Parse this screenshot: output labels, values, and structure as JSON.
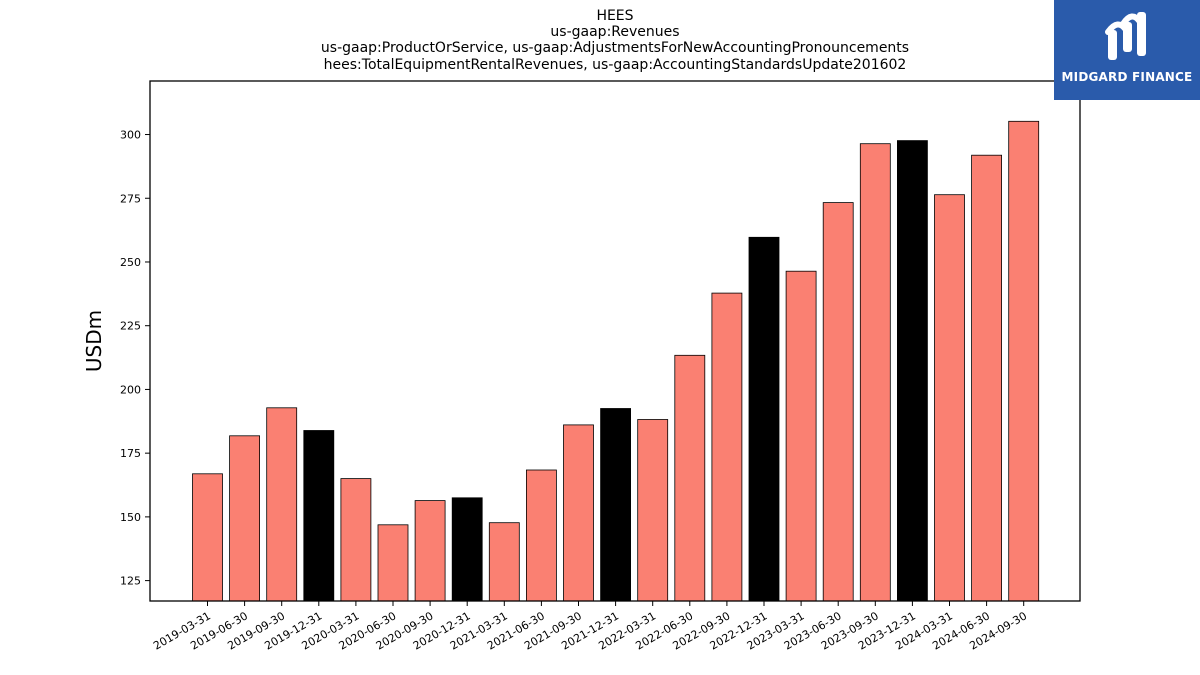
{
  "logo": {
    "text": "MIDGARD FINANCE",
    "icon": "midgard-logo-icon",
    "color": "#2a5bab"
  },
  "chart_data": {
    "type": "bar",
    "title_lines": [
      "HEES",
      "us-gaap:Revenues",
      "us-gaap:ProductOrService, us-gaap:AdjustmentsForNewAccountingPronouncements",
      "hees:TotalEquipmentRentalRevenues, us-gaap:AccountingStandardsUpdate201602"
    ],
    "xlabel": "",
    "ylabel": "USDm",
    "ylim": [
      117,
      321
    ],
    "yticks": [
      125,
      150,
      175,
      200,
      225,
      250,
      275,
      300
    ],
    "grid": false,
    "colors": {
      "quarter": "#fa8072",
      "year_end": "#000000",
      "edge": "#000000"
    },
    "categories": [
      "2019-03-31",
      "2019-06-30",
      "2019-09-30",
      "2019-12-31",
      "2020-03-31",
      "2020-06-30",
      "2020-09-30",
      "2020-12-31",
      "2021-03-31",
      "2021-06-30",
      "2021-09-30",
      "2021-12-31",
      "2022-03-31",
      "2022-06-30",
      "2022-09-30",
      "2022-12-31",
      "2023-03-31",
      "2023-06-30",
      "2023-09-30",
      "2023-12-31",
      "2024-03-31",
      "2024-06-30",
      "2024-09-30"
    ],
    "values": [
      166.9,
      181.8,
      192.8,
      183.9,
      165.0,
      146.9,
      156.4,
      157.5,
      147.7,
      168.4,
      186.1,
      192.5,
      188.2,
      213.4,
      237.8,
      259.7,
      246.4,
      273.3,
      296.4,
      297.6,
      276.4,
      291.9,
      305.2
    ],
    "highlight": [
      false,
      false,
      false,
      true,
      false,
      false,
      false,
      true,
      false,
      false,
      false,
      true,
      false,
      false,
      false,
      true,
      false,
      false,
      false,
      true,
      false,
      false,
      false
    ]
  }
}
